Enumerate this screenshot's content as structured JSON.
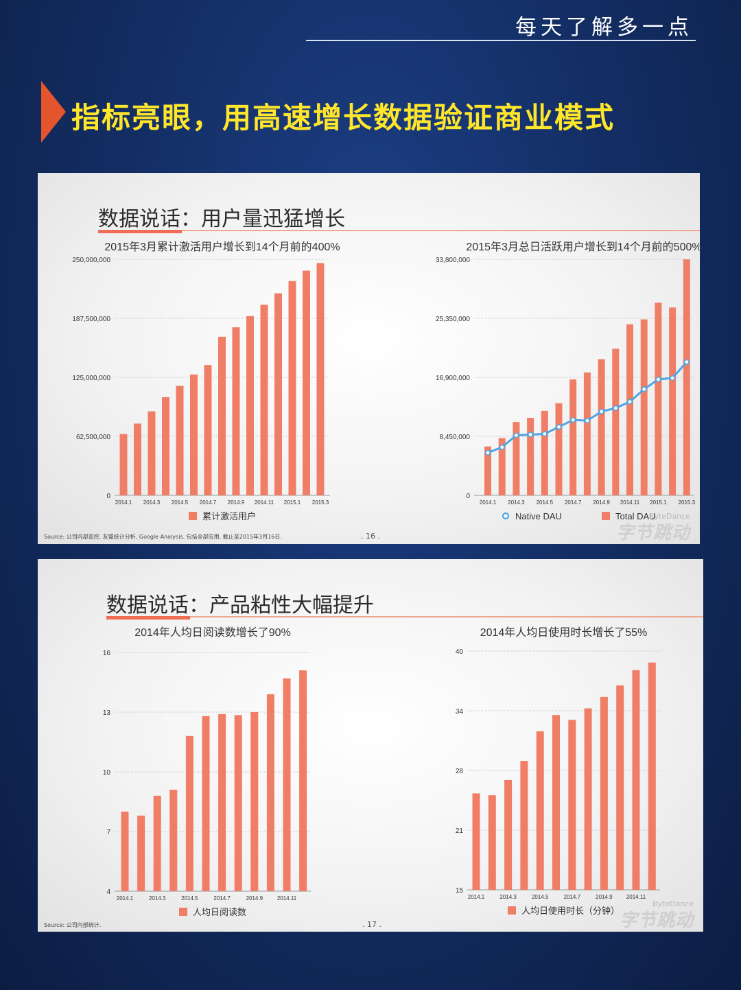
{
  "header": {
    "slogan": "每天了解多一点",
    "headline": "指标亮眼，用高速增长数据验证商业模式"
  },
  "colors": {
    "bar": "#f07e66",
    "line": "#4ba7e6",
    "accent": "#ef6c55",
    "headline": "#ffe62b"
  },
  "slides": [
    {
      "title": "数据说话：用户量迅猛增长",
      "source": "Source: 公司内部监控, 友盟统计分析, Google Analysis. 包括全部应用, 截止至2015年3月16日.",
      "page": ". 16 .",
      "brand_en": "ByteDance",
      "brand_cn": "字节跳动"
    },
    {
      "title": "数据说话：产品粘性大幅提升",
      "source": "Source: 公司内部统计.",
      "page": ". 17 .",
      "brand_en": "ByteDance",
      "brand_cn": "字节跳动"
    }
  ],
  "chart_data": [
    {
      "type": "bar",
      "caption": "2015年3月累计激活用户增长到14个月前的400%",
      "x_tick_labels": [
        "2014.1",
        "2014.3",
        "2014.5",
        "2014.7",
        "2014.9",
        "2014.11",
        "2015.1",
        "2015.3"
      ],
      "y_ticks": [
        "250,000,000",
        "187,500,000",
        "125,000,000",
        "62,500,000",
        "0"
      ],
      "ylim": [
        0,
        250000000
      ],
      "series": [
        {
          "name": "累计激活用户",
          "values": [
            65000000,
            76000000,
            89000000,
            104000000,
            116000000,
            128000000,
            138000000,
            168000000,
            178000000,
            190000000,
            202000000,
            214000000,
            227000000,
            238000000,
            246000000
          ]
        }
      ]
    },
    {
      "type": "bar+line",
      "caption": "2015年3月总日活跃用户增长到14个月前的500%",
      "x_tick_labels": [
        "2014.1",
        "2014.3",
        "2014.5",
        "2014.7",
        "2014.9",
        "2014.11",
        "2015.1",
        "2015.3"
      ],
      "y_ticks": [
        "33,800,000",
        "25,350,000",
        "16,900,000",
        "8,450,000",
        "0"
      ],
      "ylim": [
        0,
        33800000
      ],
      "series": [
        {
          "name": "Native DAU",
          "kind": "line",
          "values": [
            6100000,
            6900000,
            8600000,
            8700000,
            8800000,
            9800000,
            10800000,
            10700000,
            12000000,
            12500000,
            13400000,
            15200000,
            16600000,
            16800000,
            19100000
          ]
        },
        {
          "name": "Total DAU",
          "kind": "bar",
          "values": [
            7000000,
            8200000,
            10500000,
            11100000,
            12100000,
            13200000,
            16600000,
            17600000,
            19500000,
            21000000,
            24500000,
            25200000,
            27600000,
            26900000,
            33800000
          ]
        }
      ]
    },
    {
      "type": "bar",
      "caption": "2014年人均日阅读数增长了90%",
      "x_tick_labels": [
        "2014.1",
        "2014.3",
        "2014.5",
        "2014.7",
        "2014.9",
        "2014.11"
      ],
      "y_ticks": [
        "16",
        "13",
        "10",
        "7",
        "4"
      ],
      "ylim": [
        4,
        16
      ],
      "series": [
        {
          "name": "人均日阅读数",
          "values": [
            8.0,
            7.8,
            8.8,
            9.1,
            11.8,
            12.8,
            12.9,
            12.85,
            13.0,
            13.9,
            14.7,
            15.1
          ]
        }
      ]
    },
    {
      "type": "bar",
      "caption": "2014年人均日使用时长增长了55%",
      "x_tick_labels": [
        "2014.1",
        "2014.3",
        "2014.5",
        "2014.7",
        "2014.9",
        "2014.11"
      ],
      "y_ticks": [
        "40",
        "34",
        "28",
        "21",
        "15"
      ],
      "ylim": [
        15,
        40
      ],
      "series": [
        {
          "name": "人均日使用时长（分钟）",
          "values": [
            25.1,
            24.9,
            26.5,
            28.5,
            31.6,
            33.3,
            32.8,
            34.0,
            35.2,
            36.4,
            38.0,
            38.8
          ]
        }
      ]
    }
  ]
}
